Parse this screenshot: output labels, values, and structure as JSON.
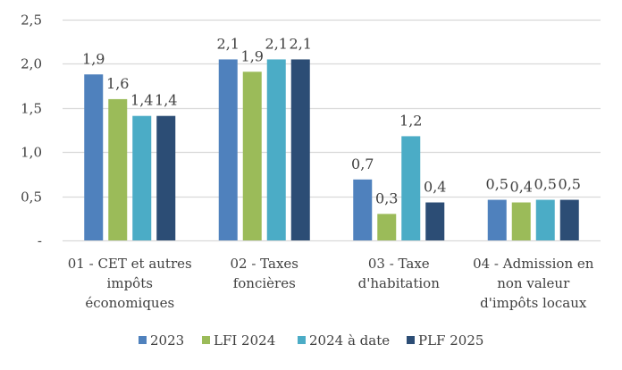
{
  "chart_data": {
    "type": "bar",
    "title": "",
    "xlabel": "",
    "ylabel": "",
    "ylim": [
      0,
      2.5
    ],
    "yticks": [
      0,
      0.5,
      1.0,
      1.5,
      2.0,
      2.5
    ],
    "ytick_labels": [
      "-",
      "0,5",
      "1,0",
      "1,5",
      "2,0",
      "2,5"
    ],
    "grid": true,
    "legend_position": "bottom",
    "categories": [
      [
        "01 - CET et autres",
        "impôts",
        "économiques"
      ],
      [
        "02 - Taxes",
        "foncières"
      ],
      [
        "03 - Taxe",
        "d'habitation"
      ],
      [
        "04 - Admission en",
        "non valeur",
        "d'impôts locaux"
      ]
    ],
    "series": [
      {
        "name": "2023",
        "color": "#4F81BD",
        "values": [
          1.88,
          2.05,
          0.69,
          0.46
        ],
        "labels": [
          "1,9",
          "2,1",
          "0,7",
          "0,5"
        ]
      },
      {
        "name": "LFI 2024",
        "color": "#9BBB59",
        "values": [
          1.6,
          1.91,
          0.3,
          0.43
        ],
        "labels": [
          "1,6",
          "1,9",
          "0,3",
          "0,4"
        ]
      },
      {
        "name": "2024 à date",
        "color": "#4BACC6",
        "values": [
          1.41,
          2.05,
          1.18,
          0.46
        ],
        "labels": [
          "1,4",
          "2,1",
          "1,2",
          "0,5"
        ]
      },
      {
        "name": "PLF 2025",
        "color": "#2C4D75",
        "values": [
          1.41,
          2.05,
          0.43,
          0.46
        ],
        "labels": [
          "1,4",
          "2,1",
          "0,4",
          "0,5"
        ]
      }
    ]
  }
}
